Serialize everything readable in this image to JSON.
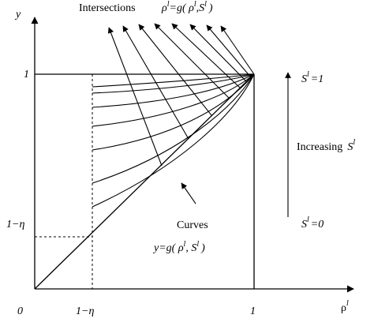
{
  "axes": {
    "y_label": "y",
    "x_label_base": "ρ",
    "x_label_sup": "l",
    "origin": "0",
    "x_tick_eta": "1−η",
    "x_tick_one": "1",
    "y_tick_one": "1",
    "y_tick_eta": "1−η"
  },
  "annotations": {
    "intersections_label": "Intersections",
    "intersections_formula": {
      "rho": "ρ",
      "sup1": "l",
      "mid": "=g( ρ",
      "sup2": "l",
      "mid2": ",S",
      "sup3": "l",
      "end": ")"
    },
    "curves_label": "Curves",
    "curves_formula": {
      "head": "y=g( ρ",
      "sup1": "l",
      "mid": ",  S",
      "sup2": "l",
      "end": ")"
    },
    "s_top": {
      "base": "S",
      "sup": "l",
      "rest": "=1"
    },
    "increasing": {
      "text": "Increasing",
      "base": "S",
      "sup": "l"
    },
    "s_bottom": {
      "base": "S",
      "sup": "l",
      "rest": "=0"
    }
  },
  "icons": [
    "arrow-up-icon",
    "arrow-upper-left-icon"
  ],
  "colors": {
    "ink": "#000000",
    "background": "#ffffff"
  }
}
